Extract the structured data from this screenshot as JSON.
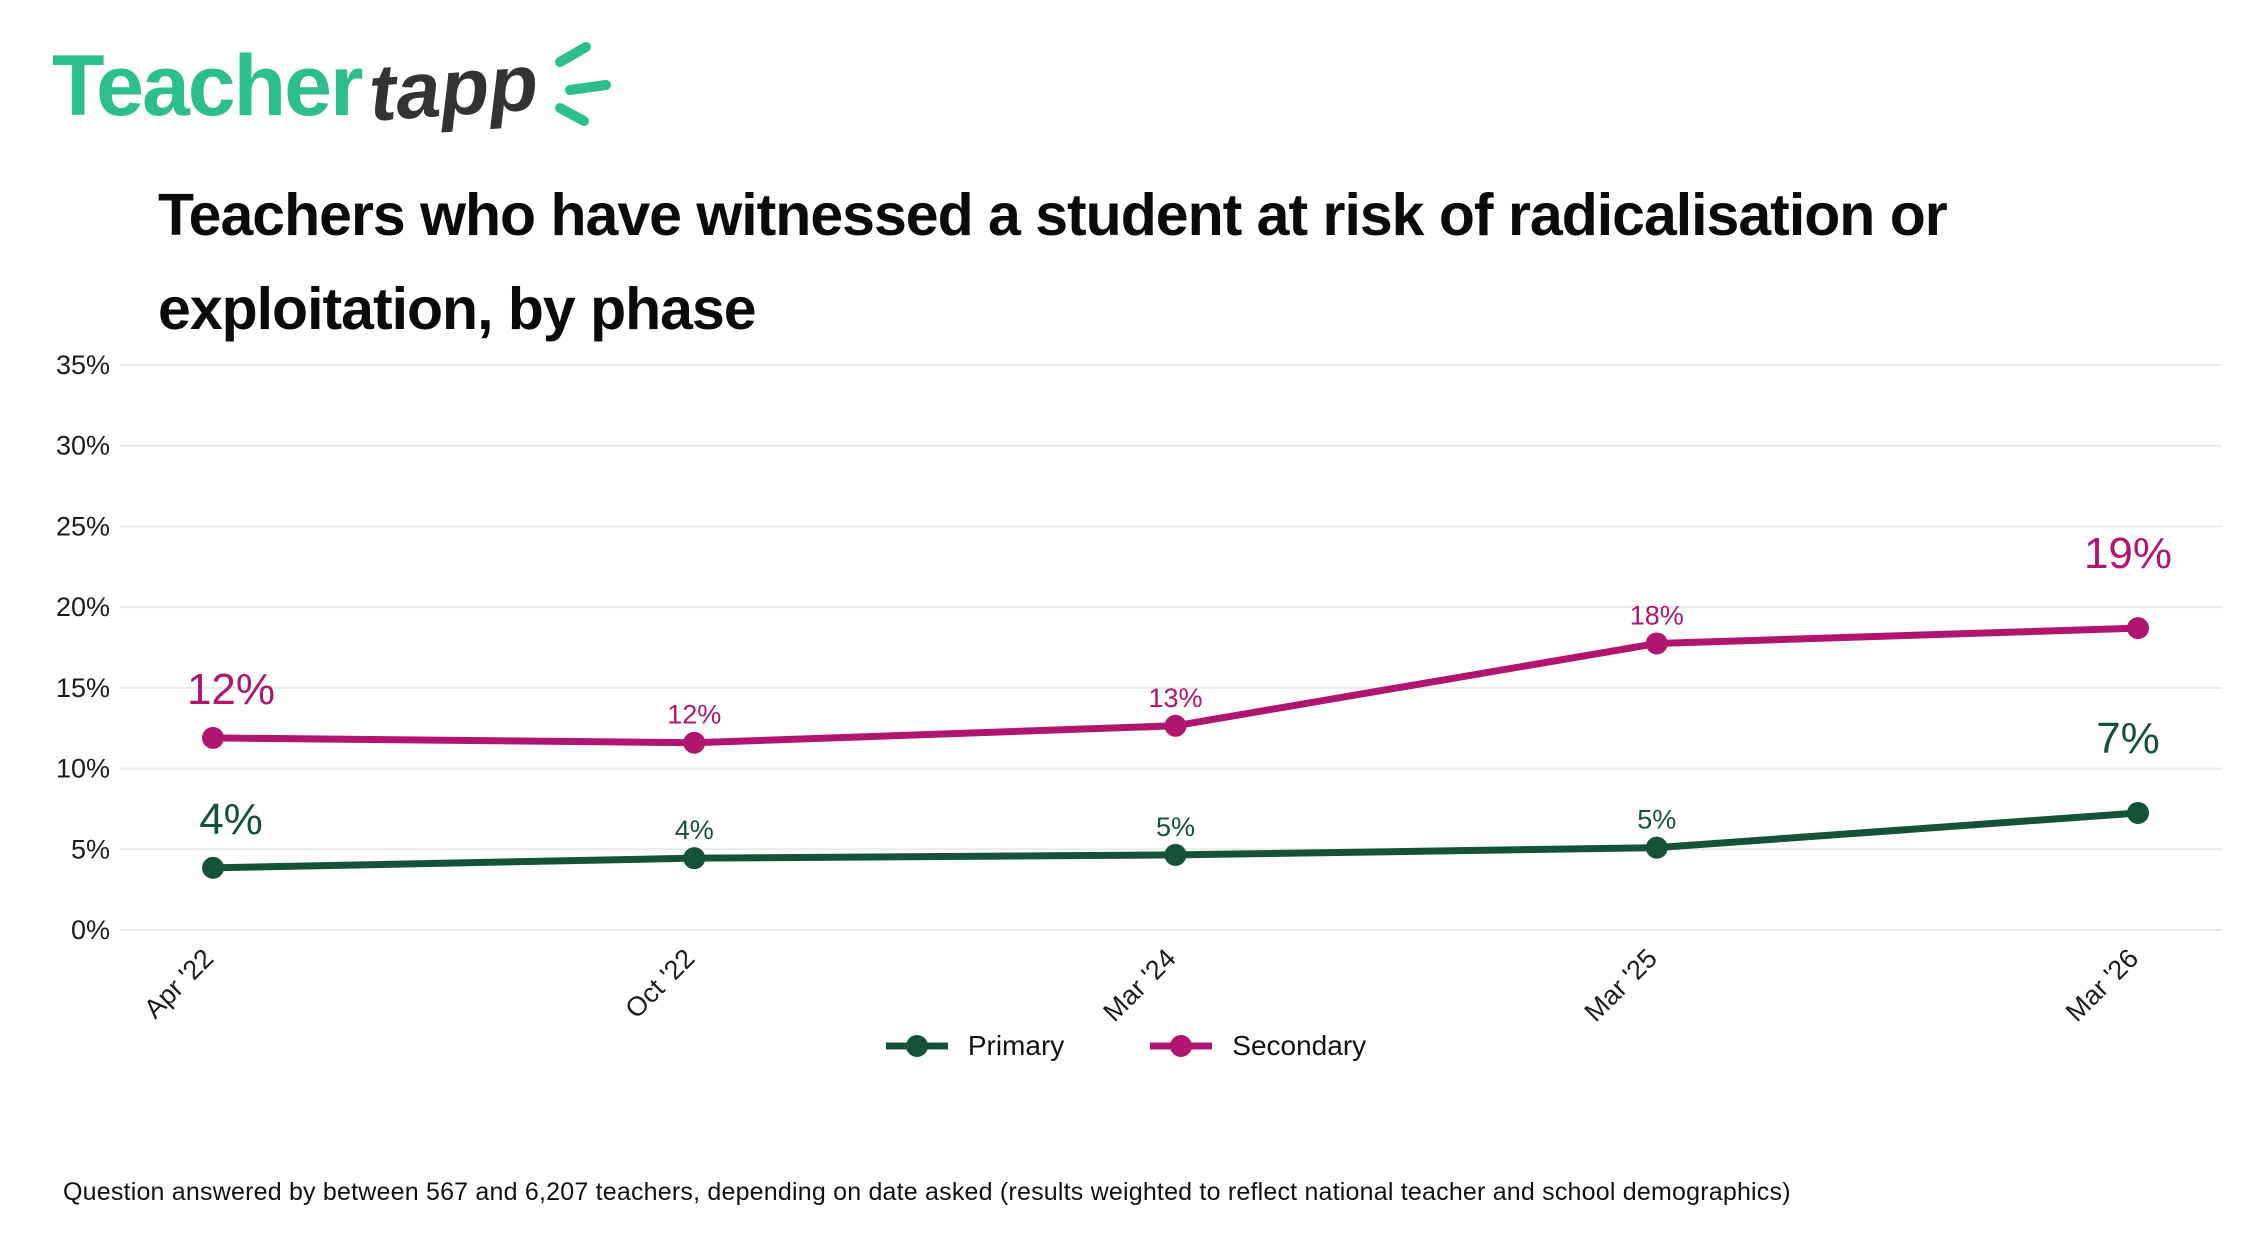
{
  "logo": {
    "word1": "Teacher",
    "word2": "tapp"
  },
  "title": {
    "line1": "Teachers who have witnessed a student at risk of radicalisation or",
    "line2": "exploitation, by phase"
  },
  "colors": {
    "primary": "#15523a",
    "secondary": "#b01570",
    "logo_green": "#2cbe8c",
    "grid": "#eaeaea",
    "axis_text": "#1c1c1c"
  },
  "legend": {
    "items": [
      {
        "label": "Primary",
        "color_key": "primary"
      },
      {
        "label": "Secondary",
        "color_key": "secondary"
      }
    ]
  },
  "footer": {
    "note": "Question answered by between 567 and 6,207 teachers, depending on date asked (results weighted to reflect national teacher and school demographics)"
  },
  "chart_data": {
    "type": "line",
    "title": "Teachers who have witnessed a student at risk of radicalisation or exploitation, by phase",
    "categories": [
      "Apr '22",
      "Oct '22",
      "Mar '24",
      "Mar '25",
      "Mar '26"
    ],
    "series": [
      {
        "name": "Primary",
        "color_key": "primary",
        "values": [
          4,
          4,
          5,
          5,
          7
        ],
        "labels": [
          "4%",
          "4%",
          "5%",
          "5%",
          "7%"
        ],
        "plot_values": [
          3.85,
          4.45,
          4.65,
          5.1,
          7.25
        ]
      },
      {
        "name": "Secondary",
        "color_key": "secondary",
        "values": [
          12,
          12,
          13,
          18,
          19
        ],
        "labels": [
          "12%",
          "12%",
          "13%",
          "18%",
          "19%"
        ],
        "plot_values": [
          11.9,
          11.6,
          12.65,
          17.75,
          18.7
        ]
      }
    ],
    "ylim": [
      0,
      35
    ],
    "yticks": [
      0,
      5,
      10,
      15,
      20,
      25,
      30,
      35
    ],
    "ytick_labels": [
      "0%",
      "5%",
      "10%",
      "15%",
      "20%",
      "25%",
      "30%",
      "35%"
    ],
    "xlabel": "",
    "ylabel": "",
    "grid": "horizontal",
    "legend_position": "bottom"
  }
}
